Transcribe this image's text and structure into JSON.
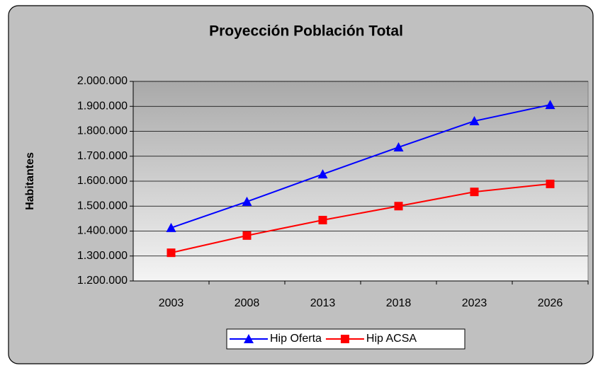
{
  "chart_data": {
    "type": "line",
    "title": "Proyección Población Total",
    "y_label": "Habitantes",
    "categories": [
      "2003",
      "2008",
      "2013",
      "2018",
      "2023",
      "2026"
    ],
    "series": [
      {
        "name": "Hip Oferta",
        "color": "#0000ff",
        "marker": "triangle",
        "values": [
          1413000,
          1518000,
          1628000,
          1736000,
          1841000,
          1906000
        ]
      },
      {
        "name": "Hip ACSA",
        "color": "#ff0000",
        "marker": "square",
        "values": [
          1313000,
          1382000,
          1444000,
          1500000,
          1557000,
          1589000
        ]
      }
    ],
    "ylim": [
      1200000,
      2000000
    ],
    "yticks": [
      {
        "value": 1200000,
        "label": "1.200.000"
      },
      {
        "value": 1300000,
        "label": "1.300.000"
      },
      {
        "value": 1400000,
        "label": "1.400.000"
      },
      {
        "value": 1500000,
        "label": "1.500.000"
      },
      {
        "value": 1600000,
        "label": "1.600.000"
      },
      {
        "value": 1700000,
        "label": "1.700.000"
      },
      {
        "value": 1800000,
        "label": "1.800.000"
      },
      {
        "value": 1900000,
        "label": "1.900.000"
      },
      {
        "value": 2000000,
        "label": "2.000.000"
      }
    ],
    "grid": true,
    "legend": "bottom"
  }
}
